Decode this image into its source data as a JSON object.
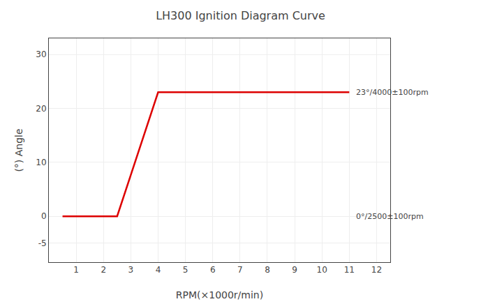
{
  "chart_data": {
    "type": "line",
    "title": "LH300 Ignition Diagram Curve",
    "xlabel": "RPM(×1000r/min)",
    "ylabel": "(°) Angle",
    "x": [
      0.5,
      2.5,
      4.0,
      11.0
    ],
    "values": [
      0,
      0,
      23,
      23
    ],
    "color": "#dd0000",
    "xlim": [
      0,
      12.5
    ],
    "ylim": [
      -8.5,
      33
    ],
    "xticks": [
      1,
      2,
      3,
      4,
      5,
      6,
      7,
      8,
      9,
      10,
      11,
      12
    ],
    "yticks": [
      -5,
      0,
      10,
      20,
      30
    ],
    "grid": true,
    "annotations": [
      "23°/4000±100rpm",
      "0°/2500±100rpm"
    ]
  }
}
